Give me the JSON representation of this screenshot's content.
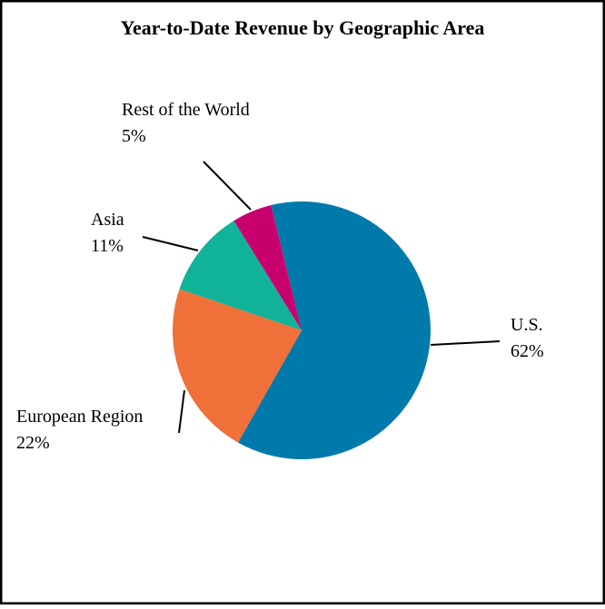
{
  "chart_data": {
    "type": "pie",
    "title": "Year-to-Date Revenue by Geographic Area",
    "categories": [
      "U.S.",
      "European Region",
      "Asia",
      "Rest of the World"
    ],
    "values": [
      62,
      22,
      11,
      5
    ],
    "value_labels": [
      "62%",
      "22%",
      "11%",
      "5%"
    ],
    "colors": [
      "#0079ab",
      "#f0703a",
      "#10b39a",
      "#c8006e"
    ]
  }
}
